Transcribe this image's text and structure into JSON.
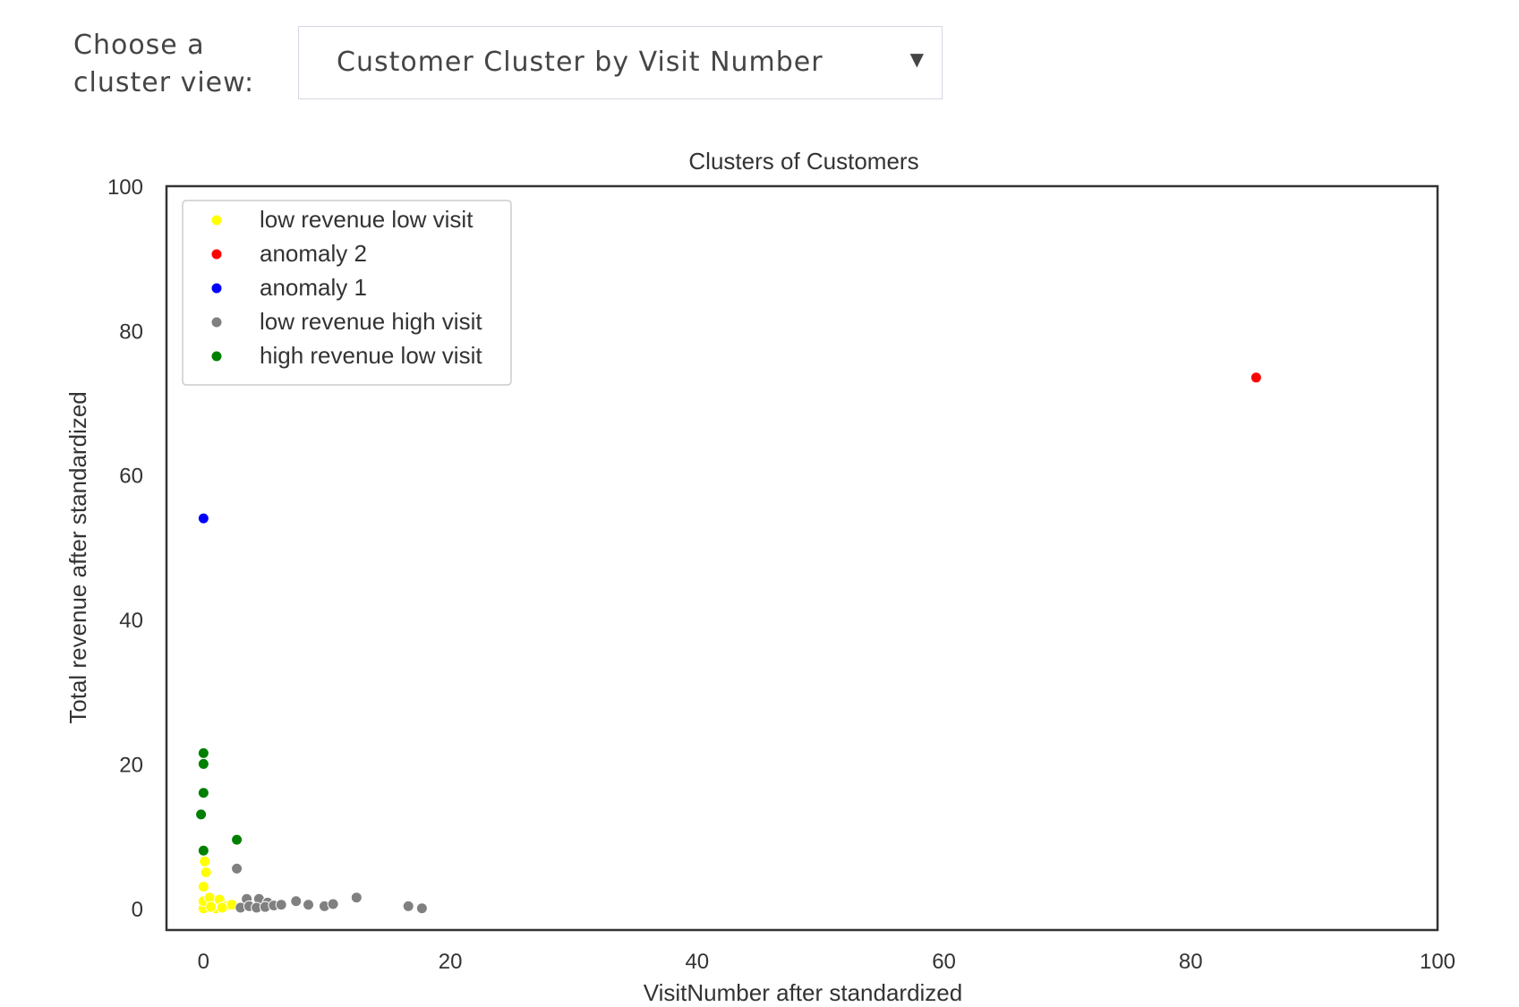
{
  "selector": {
    "label_line1": "Choose a",
    "label_line2": "cluster view:",
    "selected": "Customer Cluster by Visit Number",
    "arrow_icon": "caret-down-icon"
  },
  "chart_data": {
    "type": "scatter",
    "title": "Clusters of Customers",
    "xlabel": "VisitNumber after standardized",
    "ylabel": "Total revenue after standardized",
    "xlim": [
      -3,
      100
    ],
    "ylim": [
      -3,
      100
    ],
    "xticks": [
      0,
      20,
      40,
      60,
      80,
      100
    ],
    "yticks": [
      0,
      20,
      40,
      60,
      80,
      100
    ],
    "grid": false,
    "legend_position": "top-left",
    "series": [
      {
        "name": "low revenue low visit",
        "color": "#ffff00",
        "points": [
          [
            0,
            0
          ],
          [
            0,
            1
          ],
          [
            0,
            3
          ],
          [
            0.2,
            5
          ],
          [
            0.1,
            6.5
          ],
          [
            0.5,
            1.5
          ],
          [
            1,
            0
          ],
          [
            1.3,
            1.2
          ],
          [
            1.8,
            0.3
          ],
          [
            2.3,
            0.5
          ],
          [
            0.6,
            0.2
          ],
          [
            1.5,
            0.1
          ]
        ]
      },
      {
        "name": "anomaly 2",
        "color": "#ff0000",
        "points": [
          [
            85.3,
            73.5
          ]
        ]
      },
      {
        "name": "anomaly 1",
        "color": "#0000ff",
        "points": [
          [
            0,
            54
          ]
        ]
      },
      {
        "name": "low revenue high visit",
        "color": "#808080",
        "points": [
          [
            2.7,
            5.5
          ],
          [
            3.5,
            1.3
          ],
          [
            4.5,
            1.3
          ],
          [
            5.2,
            0.8
          ],
          [
            3,
            0.1
          ],
          [
            3.7,
            0.3
          ],
          [
            4.3,
            0.1
          ],
          [
            5,
            0.2
          ],
          [
            5.7,
            0.4
          ],
          [
            6.3,
            0.5
          ],
          [
            7.5,
            1
          ],
          [
            8.5,
            0.5
          ],
          [
            9.8,
            0.3
          ],
          [
            10.5,
            0.6
          ],
          [
            12.4,
            1.5
          ],
          [
            16.6,
            0.3
          ],
          [
            17.7,
            0
          ]
        ]
      },
      {
        "name": "high revenue low visit",
        "color": "#008000",
        "points": [
          [
            0,
            21.5
          ],
          [
            0,
            20
          ],
          [
            0,
            16
          ],
          [
            -0.2,
            13
          ],
          [
            0,
            8
          ],
          [
            2.7,
            9.5
          ]
        ]
      }
    ]
  }
}
